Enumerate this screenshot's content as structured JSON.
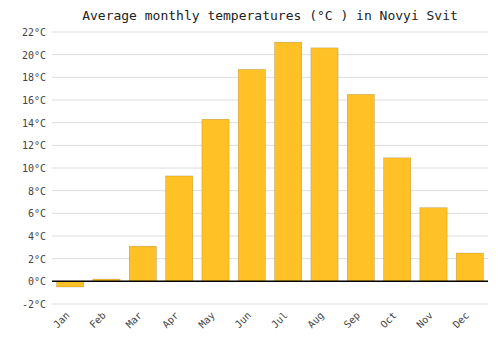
{
  "chart_data": {
    "type": "bar",
    "title": "Average monthly temperatures (°C ) in Novyi Svit",
    "categories": [
      "Jan",
      "Feb",
      "Mar",
      "Apr",
      "May",
      "Jun",
      "Jul",
      "Aug",
      "Sep",
      "Oct",
      "Nov",
      "Dec"
    ],
    "values": [
      -0.5,
      0.2,
      3.1,
      9.3,
      14.3,
      18.7,
      21.1,
      20.6,
      16.5,
      10.9,
      6.5,
      2.5
    ],
    "color": "#FFC125",
    "ylim": [
      -2,
      22
    ],
    "yticks": [
      {
        "value": -2,
        "label": "-2°C"
      },
      {
        "value": 0,
        "label": "0°C"
      },
      {
        "value": 2,
        "label": "2°C"
      },
      {
        "value": 4,
        "label": "4°C"
      },
      {
        "value": 6,
        "label": "6°C"
      },
      {
        "value": 8,
        "label": "8°C"
      },
      {
        "value": 10,
        "label": "10°C"
      },
      {
        "value": 12,
        "label": "12°C"
      },
      {
        "value": 14,
        "label": "14°C"
      },
      {
        "value": 16,
        "label": "16°C"
      },
      {
        "value": 18,
        "label": "18°C"
      },
      {
        "value": 20,
        "label": "20°C"
      },
      {
        "value": 22,
        "label": "22°C"
      }
    ],
    "grid": true
  }
}
